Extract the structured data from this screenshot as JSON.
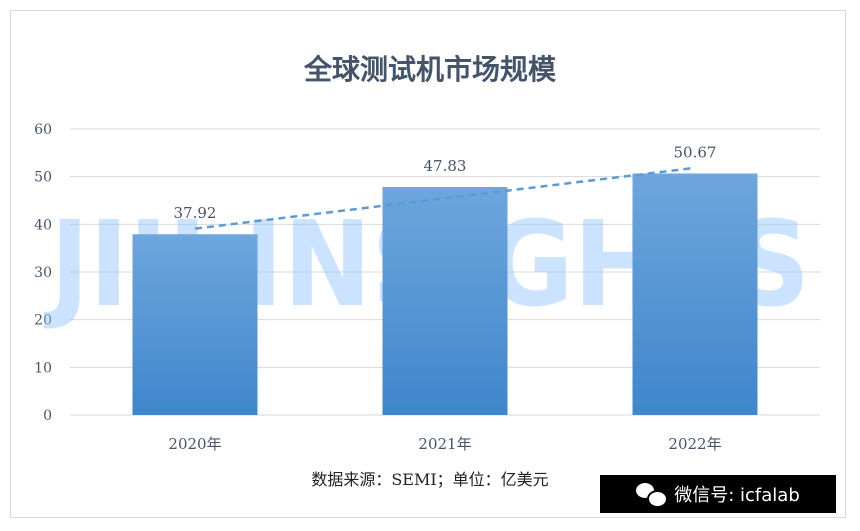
{
  "chart_data": {
    "type": "bar",
    "title": "全球测试机市场规模",
    "categories": [
      "2020年",
      "2021年",
      "2022年"
    ],
    "series": [
      {
        "values": [
          37.92,
          47.83,
          50.67
        ]
      }
    ],
    "data_labels": [
      "37.92",
      "47.83",
      "50.67"
    ],
    "ylim": [
      0,
      60
    ],
    "yticks": [
      0,
      10,
      20,
      30,
      40,
      50,
      60
    ],
    "grid": true,
    "trendline": "linear",
    "colors": {
      "bar_top": "#6ea6dd",
      "bar_bottom": "#3f86cc",
      "trend": "#5b9bd5",
      "grid": "#d9d9d9",
      "text": "#44546a"
    }
  },
  "watermark": "JIII INSIGHTS",
  "source_note": "数据来源：SEMI；单位：亿美元",
  "badge": {
    "label": "微信号: icfalab",
    "icon": "wechat-icon"
  }
}
